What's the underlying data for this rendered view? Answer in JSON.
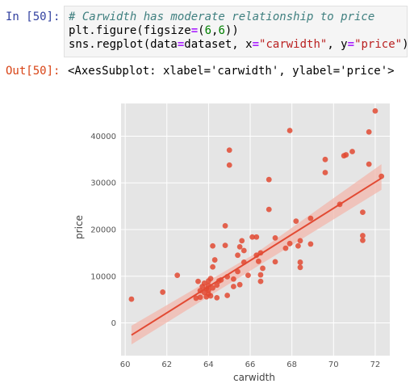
{
  "cell": {
    "in_prompt": "In [50]:",
    "out_prompt": "Out[50]:",
    "code": {
      "comment": "# Carwidth has moderate relationship to price",
      "line2": {
        "prefix": "plt.figure(figsize",
        "eq": "=",
        "open": "(",
        "n1": "6",
        "comma": ",",
        "n2": "6",
        "close": "))"
      },
      "line3": {
        "prefix": "sns.regplot(data",
        "eq1": "=",
        "mid1": "dataset, x",
        "eq2": "=",
        "str1": "\"carwidth\"",
        "mid2": ", y",
        "eq3": "=",
        "str2": "\"price\"",
        "close": ")"
      }
    },
    "output_text": "<AxesSubplot: xlabel='carwidth', ylabel='price'>"
  },
  "colors": {
    "plot_bg": "#e5e5e5",
    "grid": "#ffffff",
    "points": "#e24a33",
    "ci_band": "#f1b7ac"
  },
  "chart_data": {
    "type": "scatter",
    "xlabel": "carwidth",
    "ylabel": "price",
    "xlim": [
      59.8,
      72.7
    ],
    "ylim": [
      -7000,
      47000
    ],
    "xticks": [
      60,
      62,
      64,
      66,
      68,
      70,
      72
    ],
    "yticks": [
      0,
      10000,
      20000,
      30000,
      40000
    ],
    "regression": {
      "x": [
        60.3,
        72.3
      ],
      "y": [
        -2600,
        31000
      ]
    },
    "ci_band": {
      "x": [
        60.3,
        66.3,
        72.3
      ],
      "upper": [
        -600,
        15000,
        34000
      ],
      "lower": [
        -4600,
        12000,
        28500
      ]
    },
    "x": [
      60.3,
      61.8,
      62.5,
      63.4,
      63.5,
      63.6,
      63.6,
      63.7,
      63.8,
      63.8,
      63.9,
      63.9,
      64.0,
      64.0,
      64.0,
      64.0,
      64.1,
      64.1,
      64.2,
      64.2,
      64.2,
      64.3,
      64.4,
      64.4,
      64.5,
      64.6,
      64.8,
      64.8,
      64.9,
      64.9,
      65.0,
      65.0,
      65.2,
      65.2,
      65.4,
      65.4,
      65.5,
      65.5,
      65.6,
      65.7,
      65.7,
      65.9,
      66.1,
      66.3,
      66.3,
      66.4,
      66.5,
      66.5,
      66.5,
      66.6,
      66.9,
      66.9,
      67.2,
      67.2,
      67.7,
      67.9,
      67.9,
      68.2,
      68.3,
      68.4,
      68.4,
      68.4,
      68.9,
      68.9,
      69.6,
      69.6,
      70.3,
      70.5,
      70.6,
      70.9,
      71.4,
      71.4,
      71.4,
      71.7,
      71.7,
      72.0,
      72.3
    ],
    "y": [
      5100,
      6600,
      10200,
      5300,
      8900,
      6900,
      5500,
      7800,
      6500,
      8500,
      5600,
      7300,
      6200,
      7000,
      8000,
      9000,
      9500,
      5800,
      7500,
      12000,
      16500,
      13500,
      8100,
      5400,
      9000,
      9200,
      20800,
      16600,
      9900,
      5900,
      37000,
      33800,
      9400,
      7800,
      11000,
      14500,
      8200,
      16300,
      17600,
      13000,
      15500,
      10200,
      18400,
      14500,
      18400,
      13200,
      10300,
      8900,
      15000,
      11700,
      30700,
      24300,
      18200,
      13100,
      16000,
      41200,
      17000,
      21800,
      16500,
      13000,
      11900,
      17600,
      22400,
      16900,
      35000,
      32200,
      25400,
      35800,
      36000,
      36700,
      23700,
      18700,
      17700,
      34000,
      40900,
      45400,
      31400
    ]
  }
}
